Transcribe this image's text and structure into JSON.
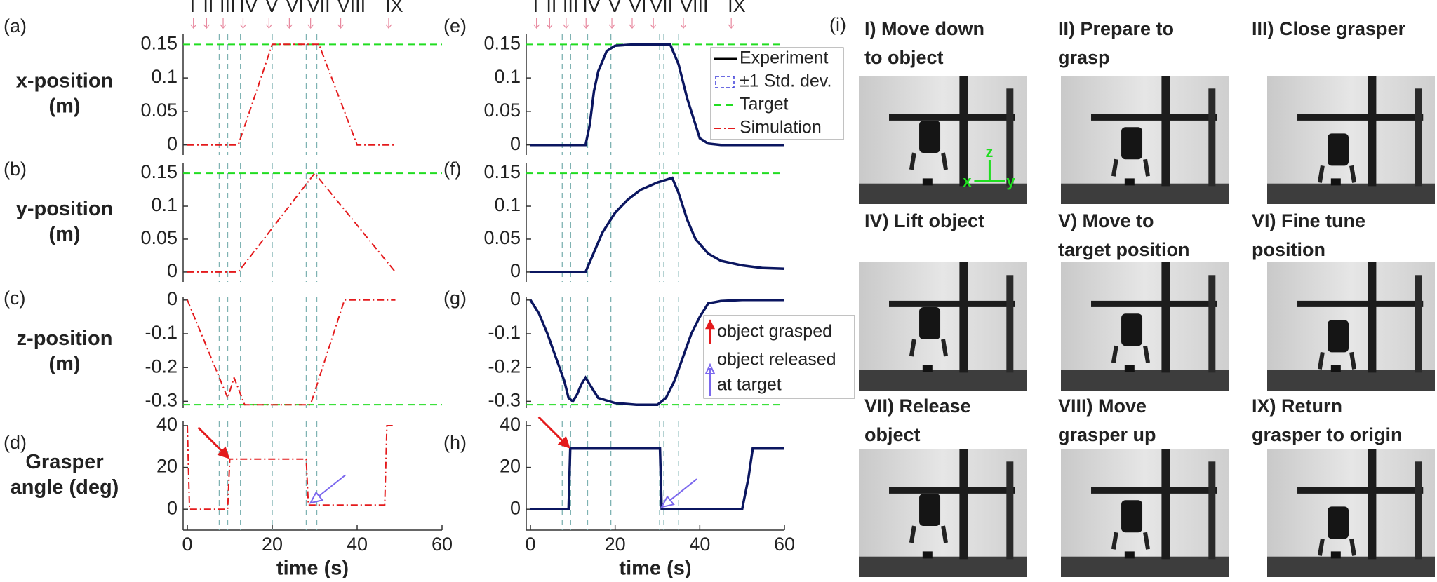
{
  "phases": [
    "I",
    "II",
    "III",
    "IV",
    "V",
    "VI",
    "VII",
    "VIII",
    "IX"
  ],
  "chart_data": [
    {
      "type": "line",
      "panel": "(a)",
      "ylabel": [
        "x-position",
        "(m)"
      ],
      "xlim": [
        -1,
        60
      ],
      "ylim": [
        -0.015,
        0.165
      ],
      "yticks": [
        0,
        0.05,
        0.1,
        0.15
      ],
      "target": 0.15,
      "target_color": "#22dd22",
      "vlines": [
        7.5,
        9.5,
        12.5,
        20,
        28,
        30.5
      ],
      "series": [
        {
          "name": "Simulation",
          "color": "#e41a1c",
          "style": "dashdot",
          "x": [
            0,
            12,
            20,
            28,
            31,
            40,
            49
          ],
          "values": [
            0,
            0,
            0.15,
            0.15,
            0.15,
            0,
            0
          ]
        }
      ]
    },
    {
      "type": "line",
      "panel": "(b)",
      "ylabel": [
        "y-position",
        "(m)"
      ],
      "xlim": [
        -1,
        60
      ],
      "ylim": [
        -0.015,
        0.165
      ],
      "yticks": [
        0,
        0.05,
        0.1,
        0.15
      ],
      "target": 0.15,
      "target_color": "#22dd22",
      "vlines": [
        7.5,
        9.5,
        12.5,
        20,
        28,
        30.5
      ],
      "series": [
        {
          "name": "Simulation",
          "color": "#e41a1c",
          "style": "dashdot",
          "x": [
            0,
            12,
            30,
            49
          ],
          "values": [
            0,
            0,
            0.15,
            0
          ]
        }
      ]
    },
    {
      "type": "line",
      "panel": "(c)",
      "ylabel": [
        "z-position",
        "(m)"
      ],
      "xlim": [
        -1,
        60
      ],
      "ylim": [
        -0.32,
        0.01
      ],
      "yticks": [
        -0.3,
        -0.2,
        -0.1,
        0
      ],
      "target": -0.31,
      "target_color": "#22dd22",
      "vlines": [
        7.5,
        9.5,
        12.5,
        20,
        28,
        30.5
      ],
      "series": [
        {
          "name": "Simulation",
          "color": "#e41a1c",
          "style": "dashdot",
          "x": [
            0,
            9.5,
            11,
            13.5,
            29,
            37,
            49
          ],
          "values": [
            0,
            -0.29,
            -0.23,
            -0.31,
            -0.31,
            0,
            0
          ]
        }
      ]
    },
    {
      "type": "line",
      "panel": "(d)",
      "ylabel": [
        "Grasper",
        "angle (deg)"
      ],
      "xlim": [
        -1,
        60
      ],
      "ylim": [
        -10,
        42
      ],
      "yticks": [
        0,
        20,
        40
      ],
      "xticks": [
        0,
        20,
        40,
        60
      ],
      "xlabel": "time (s)",
      "vlines": [
        7.5,
        9.5,
        12.5,
        20,
        28,
        30.5
      ],
      "series": [
        {
          "name": "Simulation",
          "color": "#e41a1c",
          "style": "dashdot",
          "x": [
            0,
            0.5,
            9.5,
            10,
            28,
            28.5,
            46.5,
            47,
            48.5
          ],
          "values": [
            40,
            0,
            0,
            24,
            24,
            2,
            2,
            40,
            40
          ]
        }
      ]
    },
    {
      "type": "line",
      "panel": "(e)",
      "xlim": [
        -1,
        60
      ],
      "ylim": [
        -0.015,
        0.165
      ],
      "yticks": [
        0,
        0.05,
        0.1,
        0.15
      ],
      "target": 0.15,
      "target_color": "#22dd22",
      "vlines": [
        7.5,
        9.5,
        13.5,
        19,
        30.5,
        31.5,
        35
      ],
      "series": [
        {
          "name": "Experiment",
          "color": "#0b1660",
          "style": "solid",
          "x": [
            0,
            13,
            14,
            15,
            16,
            18,
            20,
            25,
            33,
            35,
            37,
            39,
            40,
            42,
            45,
            50,
            60
          ],
          "values": [
            0,
            0,
            0.03,
            0.08,
            0.11,
            0.14,
            0.148,
            0.15,
            0.15,
            0.12,
            0.07,
            0.03,
            0.01,
            0.002,
            0,
            0,
            0
          ]
        }
      ],
      "legend": [
        {
          "name": "Experiment",
          "color": "#000000",
          "style": "solid"
        },
        {
          "name": "±1 Std. dev.",
          "color": "#3b3bd9",
          "style": "box"
        },
        {
          "name": "Target",
          "color": "#22dd22",
          "style": "dash"
        },
        {
          "name": "Simulation",
          "color": "#e41a1c",
          "style": "dashdot"
        }
      ]
    },
    {
      "type": "line",
      "panel": "(f)",
      "xlim": [
        -1,
        60
      ],
      "ylim": [
        -0.015,
        0.165
      ],
      "yticks": [
        0,
        0.05,
        0.1,
        0.15
      ],
      "target": 0.15,
      "target_color": "#22dd22",
      "vlines": [
        7.5,
        9.5,
        13.5,
        19,
        30.5,
        31.5,
        35
      ],
      "series": [
        {
          "name": "Experiment",
          "color": "#0b1660",
          "style": "solid",
          "x": [
            0,
            13,
            15,
            17,
            20,
            23,
            26,
            30,
            33.5,
            35,
            37,
            39,
            42,
            45,
            50,
            55,
            60
          ],
          "values": [
            0,
            0,
            0.03,
            0.06,
            0.09,
            0.11,
            0.125,
            0.136,
            0.143,
            0.12,
            0.08,
            0.05,
            0.028,
            0.017,
            0.01,
            0.006,
            0.005
          ]
        }
      ]
    },
    {
      "type": "line",
      "panel": "(g)",
      "xlim": [
        -1,
        60
      ],
      "ylim": [
        -0.32,
        0.01
      ],
      "yticks": [
        -0.3,
        -0.2,
        -0.1,
        0
      ],
      "target": -0.31,
      "target_color": "#22dd22",
      "vlines": [
        7.5,
        9.5,
        13.5,
        19,
        30.5,
        31.5,
        35
      ],
      "series": [
        {
          "name": "Experiment",
          "color": "#0b1660",
          "style": "solid",
          "x": [
            0,
            2,
            4,
            6,
            8,
            9,
            10,
            11,
            12,
            13,
            14,
            16,
            20,
            25,
            30,
            32,
            34,
            36,
            38,
            40,
            42,
            45,
            50,
            60
          ],
          "values": [
            0,
            -0.04,
            -0.1,
            -0.17,
            -0.24,
            -0.29,
            -0.3,
            -0.28,
            -0.25,
            -0.23,
            -0.25,
            -0.29,
            -0.305,
            -0.31,
            -0.31,
            -0.29,
            -0.24,
            -0.17,
            -0.1,
            -0.05,
            -0.01,
            -0.003,
            0,
            0
          ]
        }
      ],
      "notes": [
        "object grasped",
        "object released",
        "at target"
      ]
    },
    {
      "type": "line",
      "panel": "(h)",
      "xlim": [
        -1,
        60
      ],
      "ylim": [
        -10,
        42
      ],
      "yticks": [
        0,
        20,
        40
      ],
      "xticks": [
        0,
        20,
        40,
        60
      ],
      "xlabel": "time (s)",
      "vlines": [
        7.5,
        9.5,
        13.5,
        19,
        30.5,
        31.5,
        35
      ],
      "series": [
        {
          "name": "Experiment",
          "color": "#0b1660",
          "style": "solid",
          "x": [
            0,
            9,
            9.4,
            30.6,
            31,
            50,
            51.5,
            52.5,
            60
          ],
          "values": [
            0,
            0,
            29,
            29,
            0,
            0,
            15,
            29,
            29
          ]
        }
      ]
    }
  ],
  "photos": {
    "label": "(i)",
    "axes": [
      "z",
      "x",
      "y"
    ],
    "captions": [
      [
        "I) Move down",
        "to object"
      ],
      [
        "II) Prepare to",
        "grasp"
      ],
      [
        "III) Close grasper"
      ],
      [
        "IV) Lift object"
      ],
      [
        "V) Move to",
        "target position"
      ],
      [
        "VI) Fine tune",
        "position"
      ],
      [
        "VII) Release",
        "object"
      ],
      [
        "VIII) Move",
        "grasper up"
      ],
      [
        "IX) Return",
        "grasper  to origin"
      ]
    ]
  }
}
